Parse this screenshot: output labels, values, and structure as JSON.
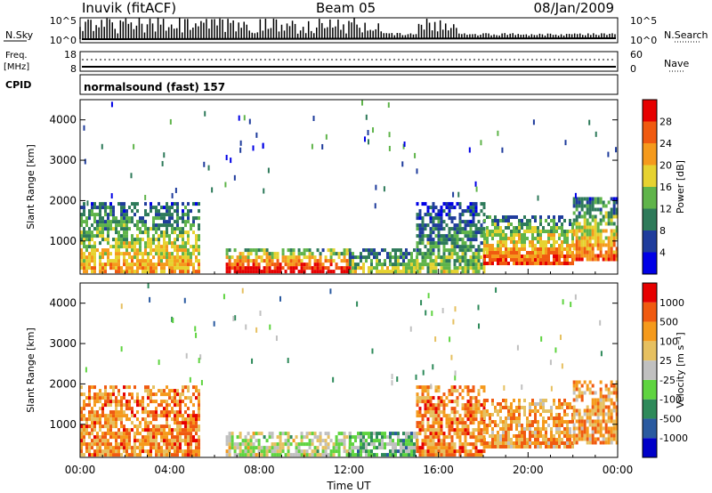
{
  "header": {
    "station": "Inuvik (fitACF)",
    "beam": "Beam 05",
    "date": "08/Jan/2009"
  },
  "sky_panel": {
    "left_label": "N.Sky",
    "right_label": "N.Search",
    "left_ticks": [
      "10^5",
      "10^0"
    ],
    "right_ticks": [
      "10^5",
      "10^0"
    ]
  },
  "freq_panel": {
    "left_label_1": "Freq.",
    "left_label_2": "[MHz]",
    "right_label": "Nave",
    "left_ticks": [
      "18",
      "8"
    ],
    "right_ticks": [
      "60",
      "0"
    ],
    "cpid_label": "CPID",
    "cpid_value": "normalsound (fast) 157"
  },
  "colors": {
    "power_scale": [
      "#0000e6",
      "#1f3c9c",
      "#2e7a5a",
      "#5fb44a",
      "#e6d230",
      "#f59a1c",
      "#f05a10",
      "#e60000"
    ],
    "velocity_scale": [
      "#e60000",
      "#f05a10",
      "#f59a1c",
      "#e6c060",
      "#c0c0c0",
      "#5fd440",
      "#2e8a5a",
      "#2a5aa0",
      "#0000c8"
    ]
  },
  "chart_data": [
    {
      "type": "heatmap",
      "name": "power",
      "xlabel": "Time UT",
      "ylabel": "Slant Range [km]",
      "xlim": [
        0,
        24
      ],
      "ylim": [
        180,
        4500
      ],
      "x_ticks": [
        "00:00",
        "04:00",
        "08:00",
        "12:00",
        "16:00",
        "20:00",
        "00:00"
      ],
      "y_ticks": [
        "1000",
        "2000",
        "3000",
        "4000"
      ],
      "colorbar": {
        "label": "Power [dB]",
        "ticks": [
          "4",
          "8",
          "12",
          "16",
          "20",
          "24",
          "28"
        ],
        "range": [
          0,
          32
        ]
      },
      "regions": [
        {
          "t0": 0.0,
          "t1": 5.3,
          "r0": 200,
          "r1": 1900,
          "level": 0.7
        },
        {
          "t0": 6.5,
          "t1": 12.0,
          "r0": 200,
          "r1": 800,
          "level": 1.0
        },
        {
          "t0": 12.0,
          "t1": 15.0,
          "r0": 200,
          "r1": 800,
          "level": 0.55
        },
        {
          "t0": 15.0,
          "t1": 18.0,
          "r0": 200,
          "r1": 1900,
          "level": 0.5
        },
        {
          "t0": 18.0,
          "t1": 22.0,
          "r0": 400,
          "r1": 1600,
          "level": 0.85
        },
        {
          "t0": 22.0,
          "t1": 24.0,
          "r0": 500,
          "r1": 2000,
          "level": 0.8
        }
      ]
    },
    {
      "type": "heatmap",
      "name": "velocity",
      "xlabel": "Time UT",
      "ylabel": "Slant Range [km]",
      "xlim": [
        0,
        24
      ],
      "ylim": [
        180,
        4500
      ],
      "x_ticks": [
        "00:00",
        "04:00",
        "08:00",
        "12:00",
        "16:00",
        "20:00",
        "00:00"
      ],
      "y_ticks": [
        "1000",
        "2000",
        "3000",
        "4000"
      ],
      "colorbar": {
        "label": "Velocity [m s⁻¹]",
        "ticks": [
          "1000",
          "500",
          "100",
          "25",
          "-25",
          "-100",
          "-500",
          "-1000"
        ],
        "range": [
          -1200,
          1200
        ]
      },
      "regions": [
        {
          "t0": 0.0,
          "t1": 5.3,
          "r0": 200,
          "r1": 1900,
          "level": 0.25
        },
        {
          "t0": 6.5,
          "t1": 12.0,
          "r0": 200,
          "r1": 800,
          "level": 0.5
        },
        {
          "t0": 12.0,
          "t1": 15.0,
          "r0": 200,
          "r1": 800,
          "level": 0.62
        },
        {
          "t0": 15.0,
          "t1": 18.0,
          "r0": 200,
          "r1": 1900,
          "level": 0.25
        },
        {
          "t0": 18.0,
          "t1": 22.0,
          "r0": 400,
          "r1": 1600,
          "level": 0.3
        },
        {
          "t0": 22.0,
          "t1": 24.0,
          "r0": 500,
          "r1": 2000,
          "level": 0.3
        }
      ]
    }
  ]
}
